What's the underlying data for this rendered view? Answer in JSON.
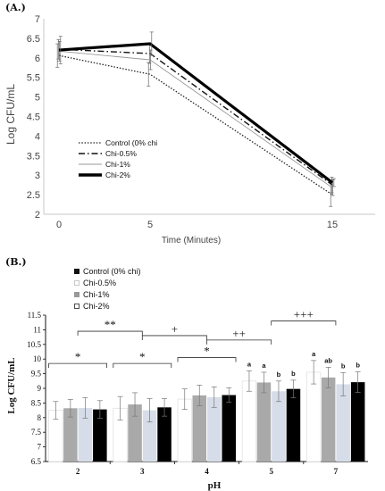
{
  "chart_data": [
    {
      "panel_label": "(A.)",
      "type": "line",
      "x": [
        0,
        5,
        15
      ],
      "x_ticks": [
        "0",
        "5",
        "15"
      ],
      "xlabel": "Time (Minutes)",
      "ylabel": "Log CFU/mL",
      "ylim": [
        2,
        7
      ],
      "y_ticks": [
        "2",
        "2.5",
        "3",
        "3.5",
        "4",
        "4.5",
        "5",
        "5.5",
        "6",
        "6.5",
        "7"
      ],
      "grid": false,
      "legend_position": "bottom-left",
      "series": [
        {
          "name": "Control (0% chi",
          "values": [
            6.06,
            5.58,
            2.5
          ],
          "errors": [
            0.3,
            0.3,
            0.3
          ],
          "style": "dotted",
          "color": "#222222"
        },
        {
          "name": "Chi-0.5%",
          "values": [
            6.22,
            6.11,
            2.75
          ],
          "errors": [
            0.25,
            0.25,
            0.2
          ],
          "style": "dashdot",
          "color": "#111111"
        },
        {
          "name": "Chi-1%",
          "values": [
            6.17,
            5.95,
            2.68
          ],
          "errors": [
            0.25,
            0.25,
            0.2
          ],
          "style": "solid-thin",
          "color": "#9a9a9a"
        },
        {
          "name": "Chi-2%",
          "values": [
            6.2,
            6.36,
            2.81
          ],
          "errors": [
            0.35,
            0.3,
            0.1
          ],
          "style": "solid-thick",
          "color": "#000000"
        }
      ]
    },
    {
      "panel_label": "(B.)",
      "type": "bar",
      "categories": [
        "2",
        "3",
        "4",
        "5",
        "7"
      ],
      "xlabel": "pH",
      "ylabel": "Log CFU/mL",
      "ylim": [
        6.5,
        11.5
      ],
      "y_ticks": [
        "6.5",
        "7",
        "7.5",
        "8",
        "8.5",
        "9",
        "9.5",
        "10",
        "10.5",
        "11",
        "11.5"
      ],
      "grid": false,
      "legend_position": "top-left",
      "series": [
        {
          "name": "Control (0% chi)",
          "fill": "#ffffff",
          "values": [
            8.25,
            8.32,
            8.63,
            9.25,
            9.55
          ],
          "errors": [
            0.3,
            0.4,
            0.35,
            0.35,
            0.4
          ]
        },
        {
          "name": "Chi-0.5%",
          "fill": "#a9a9a9",
          "values": [
            8.32,
            8.45,
            8.76,
            9.2,
            9.37
          ],
          "errors": [
            0.3,
            0.4,
            0.35,
            0.35,
            0.35
          ]
        },
        {
          "name": "Chi-1%",
          "fill": "#d6dde8",
          "values": [
            8.33,
            8.25,
            8.7,
            8.9,
            9.14
          ],
          "errors": [
            0.35,
            0.4,
            0.35,
            0.35,
            0.4
          ]
        },
        {
          "name": "Chi-2%",
          "fill": "#000000",
          "values": [
            8.28,
            8.35,
            8.77,
            8.98,
            9.21
          ],
          "errors": [
            0.3,
            0.3,
            0.25,
            0.3,
            0.35
          ]
        }
      ],
      "bar_letters": [
        {
          "category": "5",
          "letters": [
            "a",
            "a",
            "b",
            "b"
          ]
        },
        {
          "category": "7",
          "letters": [
            "a",
            "ab",
            "b",
            "b"
          ]
        }
      ],
      "legend_entries": [
        {
          "label": "Control (0% chi)",
          "marker": "filled-black"
        },
        {
          "label": "Chi-0.5%",
          "marker": "open-gray"
        },
        {
          "label": "Chi-1%",
          "marker": "filled-gray"
        },
        {
          "label": "Chi-2%",
          "marker": "open-black"
        }
      ],
      "significance": [
        {
          "label": "*",
          "from": "2",
          "to": "2"
        },
        {
          "label": "*",
          "from": "3",
          "to": "3"
        },
        {
          "label": "*",
          "from": "4",
          "to": "4"
        },
        {
          "label": "**",
          "from": "2",
          "to": "3"
        },
        {
          "label": "+",
          "from": "3",
          "to": "4"
        },
        {
          "label": "++",
          "from": "4",
          "to": "5"
        },
        {
          "label": "+++",
          "from": "5",
          "to": "7"
        }
      ]
    }
  ]
}
